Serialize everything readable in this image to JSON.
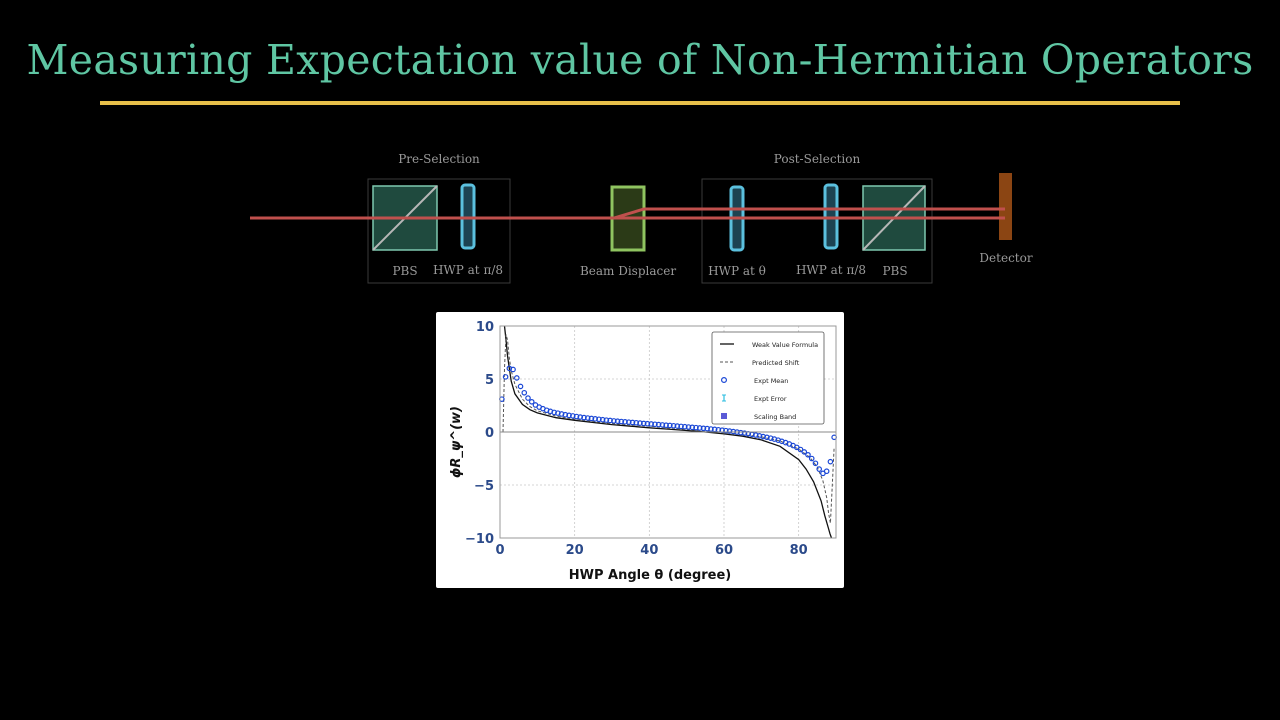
{
  "title": "Measuring Expectation value of Non-Hermitian Operators",
  "setup": {
    "pre_selection_label": "Pre-Selection",
    "post_selection_label": "Post-Selection",
    "pbs_label": "PBS",
    "hwp_pi8_label": "HWP at π/8",
    "beam_displacer_label": "Beam Displacer",
    "hwp_theta_label": "HWP at θ",
    "hwp_pi8_label_2": "HWP at π/8",
    "pbs_label_2": "PBS",
    "detector_label": "Detector"
  },
  "colors": {
    "title": "#5fc6a3",
    "rule": "#e8c04a",
    "beam": "#c0504d",
    "pbs": "#7fc9b0",
    "hwp": "#5bc0de",
    "beam_displacer": "#8fc460",
    "detector": "#8b4513",
    "expt_marker": "#1a47d6"
  },
  "chart_data": {
    "type": "line",
    "ylabel": "ϕR_ψ^(w)",
    "xlabel": "HWP Angle θ  (degree)",
    "xlim": [
      0,
      90
    ],
    "ylim": [
      -10,
      10
    ],
    "x_ticks": [
      "0",
      "20",
      "40",
      "60",
      "80"
    ],
    "y_ticks": [
      "10",
      "5",
      "0",
      "−5",
      "−10"
    ],
    "grid": true,
    "legend_position": "top-right",
    "legend": [
      "Weak Value Formula",
      "Predicted Shift",
      "Expt Mean",
      "Expt Error",
      "Scaling Band"
    ],
    "series": [
      {
        "name": "Weak Value Formula",
        "style": "solid",
        "x": [
          1.2,
          1.6,
          2,
          3,
          4,
          6,
          8,
          10,
          15,
          20,
          25,
          30,
          35,
          40,
          45,
          50,
          55,
          60,
          65,
          70,
          75,
          80,
          82,
          84,
          86,
          87,
          88,
          88.4,
          88.8
        ],
        "y": [
          10,
          8.7,
          7.2,
          4.8,
          3.6,
          2.6,
          2.1,
          1.8,
          1.35,
          1.1,
          0.9,
          0.7,
          0.55,
          0.4,
          0.27,
          0.14,
          0.0,
          -0.18,
          -0.4,
          -0.75,
          -1.35,
          -2.6,
          -3.5,
          -4.7,
          -6.5,
          -7.9,
          -9.1,
          -9.6,
          -10
        ]
      },
      {
        "name": "Predicted Shift",
        "style": "dashed",
        "x": [
          0.8,
          1.2,
          1.6,
          2,
          2.5,
          3,
          4,
          6,
          8,
          10,
          15,
          20,
          30,
          40,
          50,
          60,
          70,
          75,
          80,
          83,
          85,
          86.5,
          87.5,
          88,
          88.5,
          89,
          89.5
        ],
        "y": [
          0,
          6,
          9.2,
          8.7,
          7.0,
          5.8,
          4.5,
          3.1,
          2.4,
          2.0,
          1.5,
          1.2,
          0.8,
          0.55,
          0.25,
          -0.05,
          -0.45,
          -0.85,
          -1.6,
          -2.4,
          -3.3,
          -4.6,
          -6.2,
          -7.6,
          -8.6,
          -5,
          -1.5
        ]
      },
      {
        "name": "Expt Mean",
        "style": "markers",
        "x": [
          0.5,
          1.5,
          2.5,
          3.5,
          4.5,
          5.5,
          6.5,
          7.5,
          8.5,
          9.5,
          10.5,
          11.5,
          12.5,
          13.5,
          14.5,
          15.5,
          16.5,
          17.5,
          18.5,
          19.5,
          20.5,
          21.5,
          22.5,
          23.5,
          24.5,
          25.5,
          26.5,
          27.5,
          28.5,
          29.5,
          30.5,
          31.5,
          32.5,
          33.5,
          34.5,
          35.5,
          36.5,
          37.5,
          38.5,
          39.5,
          40.5,
          41.5,
          42.5,
          43.5,
          44.5,
          45.5,
          46.5,
          47.5,
          48.5,
          49.5,
          50.5,
          51.5,
          52.5,
          53.5,
          54.5,
          55.5,
          56.5,
          57.5,
          58.5,
          59.5,
          60.5,
          61.5,
          62.5,
          63.5,
          64.5,
          65.5,
          66.5,
          67.5,
          68.5,
          69.5,
          70.5,
          71.5,
          72.5,
          73.5,
          74.5,
          75.5,
          76.5,
          77.5,
          78.5,
          79.5,
          80.5,
          81.5,
          82.5,
          83.5,
          84.5,
          85.5,
          86.5,
          87.5,
          88.5,
          89.5
        ],
        "y": [
          3.1,
          5.2,
          6.0,
          5.9,
          5.1,
          4.3,
          3.7,
          3.2,
          2.85,
          2.55,
          2.35,
          2.2,
          2.05,
          1.95,
          1.85,
          1.78,
          1.7,
          1.63,
          1.57,
          1.52,
          1.46,
          1.41,
          1.36,
          1.32,
          1.28,
          1.24,
          1.2,
          1.16,
          1.12,
          1.09,
          1.05,
          1.02,
          0.99,
          0.96,
          0.93,
          0.9,
          0.87,
          0.84,
          0.81,
          0.78,
          0.76,
          0.73,
          0.7,
          0.67,
          0.64,
          0.62,
          0.59,
          0.56,
          0.53,
          0.5,
          0.47,
          0.44,
          0.41,
          0.38,
          0.35,
          0.32,
          0.28,
          0.25,
          0.21,
          0.17,
          0.13,
          0.09,
          0.04,
          -0.01,
          -0.06,
          -0.11,
          -0.17,
          -0.23,
          -0.29,
          -0.36,
          -0.43,
          -0.5,
          -0.58,
          -0.67,
          -0.77,
          -0.88,
          -1.0,
          -1.13,
          -1.28,
          -1.45,
          -1.65,
          -1.88,
          -2.15,
          -2.5,
          -2.95,
          -3.5,
          -3.9,
          -3.7,
          -2.8,
          -0.5
        ]
      }
    ]
  }
}
